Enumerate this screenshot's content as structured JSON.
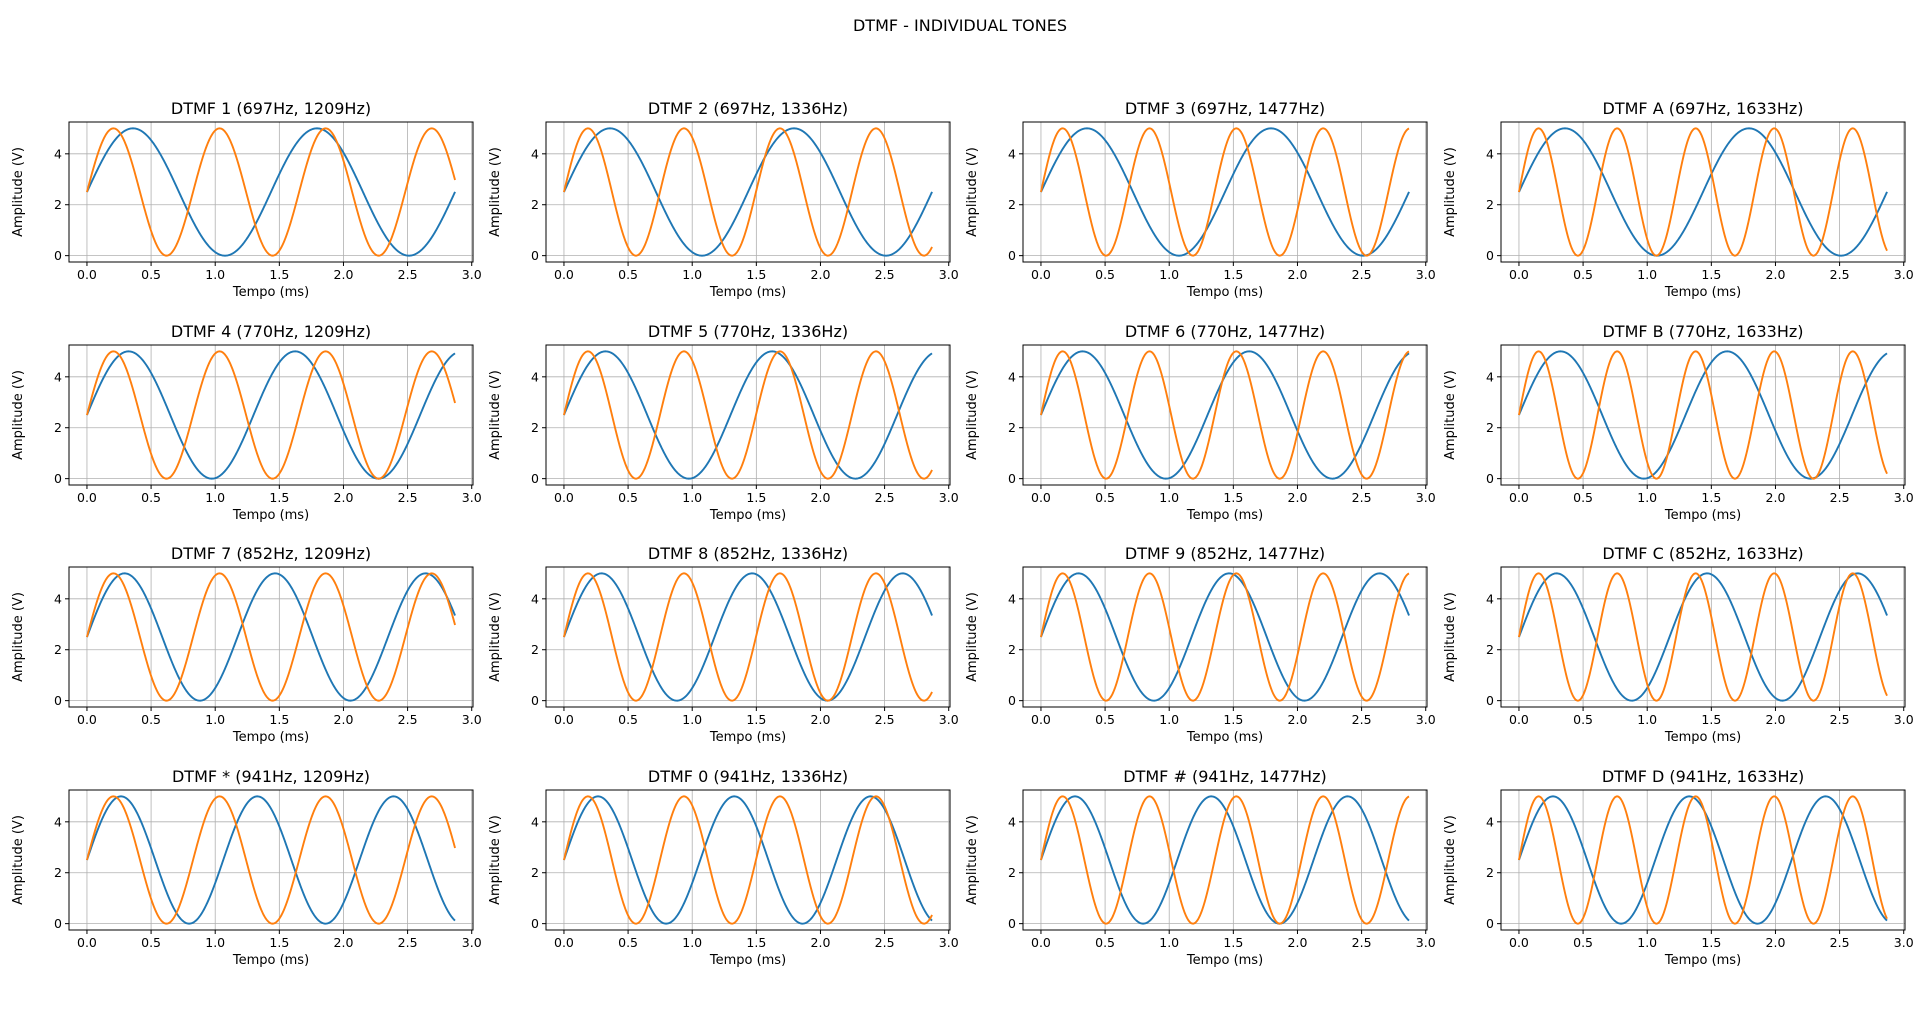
{
  "figure": {
    "title": "DTMF - INDIVIDUAL TONES"
  },
  "chart_data": {
    "type": "line",
    "layout": "4x4 grid of subplots",
    "amplitude_v": 5,
    "offset_v": 2.5,
    "time_range_ms": [
      0,
      2.87
    ],
    "xlabel": "Tempo (ms)",
    "ylabel": "Amplitude (V)",
    "xlim": [
      -0.14,
      3.01
    ],
    "ylim": [
      -0.25,
      5.25
    ],
    "xticks": [
      "0.0",
      "0.5",
      "1.0",
      "1.5",
      "2.0",
      "2.5",
      "3.0"
    ],
    "yticks": [
      "0",
      "2",
      "4"
    ],
    "grid": true,
    "series_colors": [
      "#1f77b4",
      "#ff7f0e"
    ],
    "subplots": [
      {
        "title": "DTMF 1 (697Hz, 1209Hz)",
        "low_hz": 697,
        "high_hz": 1209
      },
      {
        "title": "DTMF 2 (697Hz, 1336Hz)",
        "low_hz": 697,
        "high_hz": 1336
      },
      {
        "title": "DTMF 3 (697Hz, 1477Hz)",
        "low_hz": 697,
        "high_hz": 1477
      },
      {
        "title": "DTMF A (697Hz, 1633Hz)",
        "low_hz": 697,
        "high_hz": 1633
      },
      {
        "title": "DTMF 4 (770Hz, 1209Hz)",
        "low_hz": 770,
        "high_hz": 1209
      },
      {
        "title": "DTMF 5 (770Hz, 1336Hz)",
        "low_hz": 770,
        "high_hz": 1336
      },
      {
        "title": "DTMF 6 (770Hz, 1477Hz)",
        "low_hz": 770,
        "high_hz": 1477
      },
      {
        "title": "DTMF B (770Hz, 1633Hz)",
        "low_hz": 770,
        "high_hz": 1633
      },
      {
        "title": "DTMF 7 (852Hz, 1209Hz)",
        "low_hz": 852,
        "high_hz": 1209
      },
      {
        "title": "DTMF 8 (852Hz, 1336Hz)",
        "low_hz": 852,
        "high_hz": 1336
      },
      {
        "title": "DTMF 9 (852Hz, 1477Hz)",
        "low_hz": 852,
        "high_hz": 1477
      },
      {
        "title": "DTMF C (852Hz, 1633Hz)",
        "low_hz": 852,
        "high_hz": 1633
      },
      {
        "title": "DTMF * (941Hz, 1209Hz)",
        "low_hz": 941,
        "high_hz": 1209
      },
      {
        "title": "DTMF 0 (941Hz, 1336Hz)",
        "low_hz": 941,
        "high_hz": 1336
      },
      {
        "title": "DTMF # (941Hz, 1477Hz)",
        "low_hz": 941,
        "high_hz": 1477
      },
      {
        "title": "DTMF D (941Hz, 1633Hz)",
        "low_hz": 941,
        "high_hz": 1633
      }
    ]
  }
}
